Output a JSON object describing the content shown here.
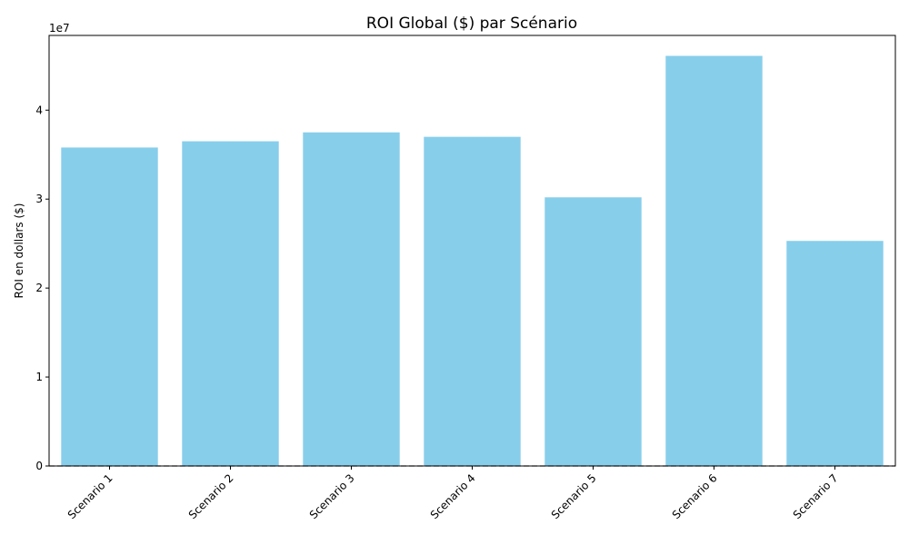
{
  "chart_data": {
    "type": "bar",
    "title": "ROI Global ($) par Scénario",
    "xlabel": "",
    "ylabel": "ROI en dollars ($)",
    "offset_label": "1e7",
    "categories": [
      "Scenario 1",
      "Scenario 2",
      "Scenario 3",
      "Scenario 4",
      "Scenario 5",
      "Scenario 6",
      "Scenario 7"
    ],
    "values": [
      35800000,
      36500000,
      37500000,
      37000000,
      30200000,
      46100000,
      25300000
    ],
    "ylim": [
      0,
      48400000
    ],
    "yticks": [
      0,
      10000000,
      20000000,
      30000000,
      40000000
    ],
    "ytick_labels": [
      "0",
      "1",
      "2",
      "3",
      "4"
    ],
    "bar_color": "#87ceeb",
    "baseline": {
      "value": 0,
      "style": "dashed",
      "color": "#555555"
    },
    "grid": false,
    "legend": "none"
  }
}
